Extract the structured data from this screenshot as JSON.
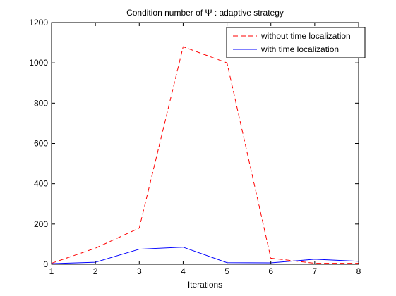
{
  "chart_data": {
    "type": "line",
    "title": "Condition number of Ψ : adaptive strategy",
    "xlabel": "Iterations",
    "ylabel": "",
    "x": [
      1,
      2,
      3,
      4,
      5,
      6,
      7,
      8
    ],
    "xlim": [
      1,
      8
    ],
    "ylim": [
      0,
      1200
    ],
    "xticks": [
      "1",
      "2",
      "3",
      "4",
      "5",
      "6",
      "7",
      "8"
    ],
    "yticks": [
      "0",
      "200",
      "400",
      "600",
      "800",
      "1000",
      "1200"
    ],
    "grid": false,
    "legend_position": "top-right",
    "series": [
      {
        "name": "without time localization",
        "color": "#ff0000",
        "style": "dashed",
        "values": [
          5,
          80,
          180,
          1080,
          1000,
          30,
          5,
          5
        ]
      },
      {
        "name": "with time localization",
        "color": "#0000ff",
        "style": "solid",
        "values": [
          3,
          10,
          75,
          85,
          8,
          7,
          25,
          15
        ]
      }
    ]
  }
}
